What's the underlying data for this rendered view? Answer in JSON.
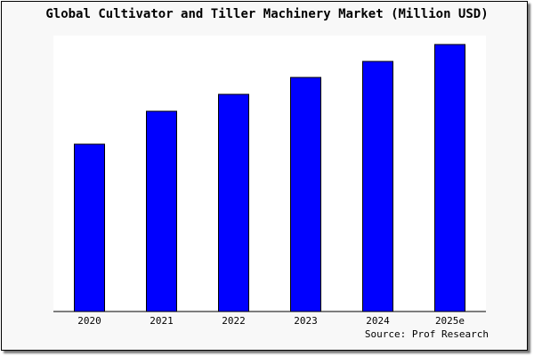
{
  "chart_data": {
    "type": "bar",
    "title": "Global Cultivator and Tiller Machinery Market (Million USD)",
    "categories": [
      "2020",
      "2021",
      "2022",
      "2023",
      "2024",
      "2025e"
    ],
    "values": [
      188,
      225,
      244,
      263,
      281,
      300
    ],
    "xlabel": "",
    "ylabel": "",
    "ylim": [
      0,
      310
    ],
    "grid": false,
    "bar_color": "#0000ff",
    "source": "Source: Prof Research"
  }
}
